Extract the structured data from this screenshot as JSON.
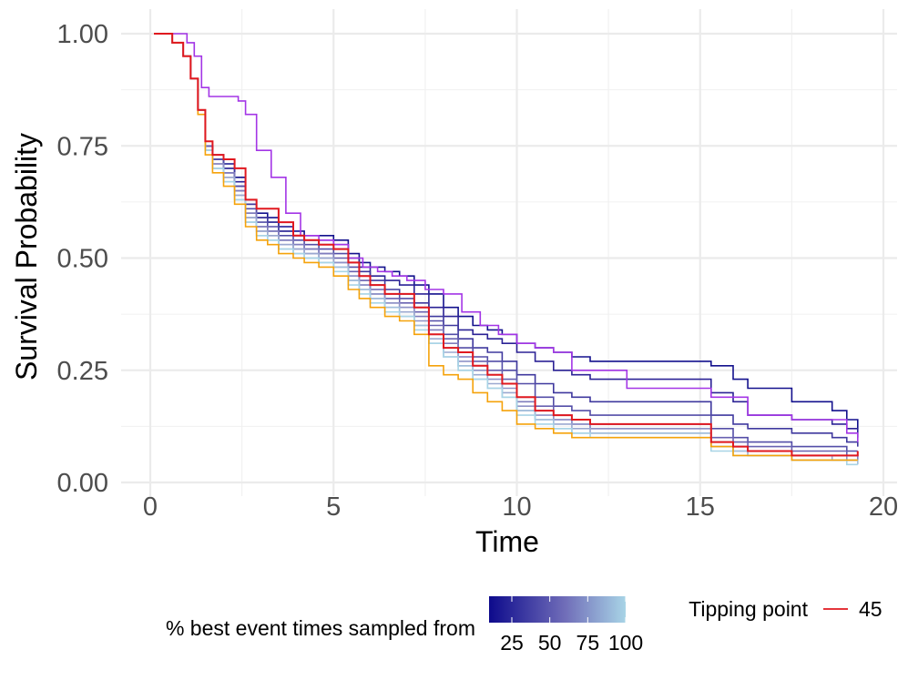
{
  "chart_data": {
    "type": "line",
    "step": true,
    "xlabel": "Time",
    "ylabel": "Survival Probability",
    "xlim": [
      0,
      20
    ],
    "ylim": [
      0,
      1
    ],
    "x_ticks": [
      0,
      5,
      10,
      15,
      20
    ],
    "x_tick_labels": [
      "0",
      "5",
      "10",
      "15",
      "20"
    ],
    "y_ticks": [
      0,
      0.25,
      0.5,
      0.75,
      1
    ],
    "y_tick_labels": [
      "0.00",
      "0.25",
      "0.50",
      "0.75",
      "1.00"
    ],
    "grid": true,
    "legend_position": "bottom",
    "colorbar": {
      "title": "% best event times sampled from",
      "tick_labels": [
        "25",
        "50",
        "75",
        "100"
      ],
      "tick_values": [
        25,
        50,
        75,
        100
      ],
      "range": [
        10,
        100
      ],
      "low_color": "#0d0a8c",
      "high_color": "#a8d4e6"
    },
    "tipping_legend": {
      "title": "Tipping point",
      "label": "45",
      "color": "#e0181f"
    },
    "series": [
      {
        "pct": 10,
        "color": "#13118d",
        "x": [
          0.1,
          0.6,
          0.9,
          1.1,
          1.3,
          1.5,
          1.7,
          2.0,
          2.3,
          2.6,
          2.9,
          3.2,
          3.5,
          3.9,
          4.2,
          4.6,
          5.0,
          5.4,
          5.7,
          6.0,
          6.4,
          6.8,
          7.2,
          7.6,
          8.0,
          8.4,
          8.8,
          9.2,
          9.6,
          10.0,
          10.5,
          11.0,
          11.5,
          12.0,
          13.0,
          15.3,
          15.9,
          16.3,
          17.5,
          18.6,
          19.0,
          19.3
        ],
        "y": [
          1,
          0.98,
          0.95,
          0.9,
          0.83,
          0.75,
          0.73,
          0.71,
          0.68,
          0.63,
          0.6,
          0.59,
          0.57,
          0.56,
          0.55,
          0.55,
          0.54,
          0.51,
          0.49,
          0.48,
          0.47,
          0.46,
          0.44,
          0.42,
          0.39,
          0.37,
          0.35,
          0.34,
          0.33,
          0.31,
          0.3,
          0.29,
          0.28,
          0.27,
          0.27,
          0.26,
          0.23,
          0.21,
          0.18,
          0.16,
          0.14,
          0.12
        ]
      },
      {
        "pct": 20,
        "color": "#2b2295",
        "x": [
          0.1,
          0.6,
          0.9,
          1.1,
          1.3,
          1.5,
          1.7,
          2.0,
          2.3,
          2.6,
          2.9,
          3.2,
          3.5,
          3.9,
          4.2,
          4.6,
          5.0,
          5.4,
          5.7,
          6.0,
          6.4,
          6.8,
          7.2,
          7.6,
          8.0,
          8.4,
          8.8,
          9.2,
          9.6,
          10.0,
          10.5,
          11.0,
          11.5,
          12.0,
          13.0,
          15.3,
          15.9,
          16.3,
          17.5,
          18.6,
          19.0,
          19.3
        ],
        "y": [
          1,
          0.98,
          0.95,
          0.9,
          0.83,
          0.75,
          0.72,
          0.7,
          0.67,
          0.62,
          0.59,
          0.58,
          0.56,
          0.55,
          0.54,
          0.54,
          0.53,
          0.5,
          0.48,
          0.46,
          0.45,
          0.44,
          0.42,
          0.39,
          0.37,
          0.34,
          0.33,
          0.32,
          0.31,
          0.29,
          0.27,
          0.25,
          0.24,
          0.23,
          0.23,
          0.2,
          0.18,
          0.15,
          0.14,
          0.13,
          0.12,
          0.1
        ]
      },
      {
        "pct": 30,
        "color": "#3f389e",
        "x": [
          0.1,
          0.6,
          0.9,
          1.1,
          1.3,
          1.5,
          1.7,
          2.0,
          2.3,
          2.6,
          2.9,
          3.2,
          3.5,
          3.9,
          4.2,
          4.6,
          5.0,
          5.4,
          5.7,
          6.0,
          6.4,
          6.8,
          7.2,
          7.6,
          8.0,
          8.4,
          8.8,
          9.2,
          9.6,
          10.0,
          10.5,
          11.0,
          11.5,
          12.0,
          13.0,
          15.3,
          15.9,
          16.3,
          17.5,
          18.6,
          19.0,
          19.3
        ],
        "y": [
          1,
          0.98,
          0.95,
          0.9,
          0.83,
          0.75,
          0.72,
          0.7,
          0.66,
          0.62,
          0.59,
          0.58,
          0.56,
          0.55,
          0.54,
          0.53,
          0.52,
          0.49,
          0.47,
          0.45,
          0.43,
          0.42,
          0.4,
          0.37,
          0.35,
          0.32,
          0.3,
          0.29,
          0.27,
          0.24,
          0.22,
          0.2,
          0.19,
          0.18,
          0.18,
          0.15,
          0.13,
          0.12,
          0.11,
          0.1,
          0.09,
          0.08
        ]
      },
      {
        "pct": 40,
        "color": "#534da7",
        "x": [
          0.1,
          0.6,
          0.9,
          1.1,
          1.3,
          1.5,
          1.7,
          2.0,
          2.3,
          2.6,
          2.9,
          3.2,
          3.5,
          3.9,
          4.2,
          4.6,
          5.0,
          5.4,
          5.7,
          6.0,
          6.4,
          6.8,
          7.2,
          7.6,
          8.0,
          8.4,
          8.8,
          9.2,
          9.6,
          10.0,
          10.5,
          11.0,
          11.5,
          12.0,
          13.0,
          15.3,
          15.9,
          16.3,
          17.5,
          18.6,
          19.0,
          19.3
        ],
        "y": [
          1,
          0.98,
          0.95,
          0.9,
          0.83,
          0.75,
          0.72,
          0.69,
          0.66,
          0.61,
          0.58,
          0.57,
          0.55,
          0.54,
          0.53,
          0.52,
          0.51,
          0.48,
          0.46,
          0.44,
          0.42,
          0.41,
          0.39,
          0.36,
          0.33,
          0.3,
          0.28,
          0.27,
          0.25,
          0.22,
          0.19,
          0.17,
          0.16,
          0.15,
          0.15,
          0.12,
          0.1,
          0.09,
          0.08,
          0.08,
          0.07,
          0.07
        ]
      },
      {
        "pct": 50,
        "color": "#6861b1",
        "x": [
          0.1,
          0.6,
          0.9,
          1.1,
          1.3,
          1.5,
          1.7,
          2.0,
          2.3,
          2.6,
          2.9,
          3.2,
          3.5,
          3.9,
          4.2,
          4.6,
          5.0,
          5.4,
          5.7,
          6.0,
          6.4,
          6.8,
          7.2,
          7.6,
          8.0,
          8.4,
          8.8,
          9.2,
          9.6,
          10.0,
          10.5,
          11.0,
          11.5,
          12.0,
          13.0,
          15.3,
          15.9,
          16.3,
          17.5,
          18.6,
          19.0,
          19.3
        ],
        "y": [
          1,
          0.98,
          0.95,
          0.9,
          0.83,
          0.75,
          0.71,
          0.69,
          0.65,
          0.6,
          0.57,
          0.56,
          0.54,
          0.53,
          0.52,
          0.51,
          0.5,
          0.47,
          0.45,
          0.43,
          0.41,
          0.4,
          0.38,
          0.35,
          0.32,
          0.29,
          0.27,
          0.25,
          0.23,
          0.19,
          0.17,
          0.15,
          0.14,
          0.13,
          0.13,
          0.1,
          0.09,
          0.08,
          0.07,
          0.07,
          0.06,
          0.06
        ]
      },
      {
        "pct": 60,
        "color": "#7f7cbd",
        "x": [
          0.1,
          0.6,
          0.9,
          1.1,
          1.3,
          1.5,
          1.7,
          2.0,
          2.3,
          2.6,
          2.9,
          3.2,
          3.5,
          3.9,
          4.2,
          4.6,
          5.0,
          5.4,
          5.7,
          6.0,
          6.4,
          6.8,
          7.2,
          7.6,
          8.0,
          8.4,
          8.8,
          9.2,
          9.6,
          10.0,
          10.5,
          11.0,
          11.5,
          12.0,
          13.0,
          15.3,
          15.9,
          16.3,
          17.5,
          18.6,
          19.0,
          19.3
        ],
        "y": [
          1,
          0.98,
          0.95,
          0.9,
          0.83,
          0.74,
          0.71,
          0.69,
          0.65,
          0.6,
          0.57,
          0.56,
          0.54,
          0.53,
          0.52,
          0.51,
          0.49,
          0.46,
          0.44,
          0.42,
          0.4,
          0.39,
          0.37,
          0.34,
          0.31,
          0.28,
          0.26,
          0.24,
          0.22,
          0.18,
          0.16,
          0.14,
          0.13,
          0.12,
          0.12,
          0.09,
          0.08,
          0.07,
          0.06,
          0.06,
          0.06,
          0.05
        ]
      },
      {
        "pct": 70,
        "color": "#8f92c7",
        "x": [
          0.1,
          0.6,
          0.9,
          1.1,
          1.3,
          1.5,
          1.7,
          2.0,
          2.3,
          2.6,
          2.9,
          3.2,
          3.5,
          3.9,
          4.2,
          4.6,
          5.0,
          5.4,
          5.7,
          6.0,
          6.4,
          6.8,
          7.2,
          7.6,
          8.0,
          8.4,
          8.8,
          9.2,
          9.6,
          10.0,
          10.5,
          11.0,
          11.5,
          12.0,
          13.0,
          15.3,
          15.9,
          16.3,
          17.5,
          18.6,
          19.0,
          19.3
        ],
        "y": [
          1,
          0.98,
          0.95,
          0.9,
          0.83,
          0.74,
          0.71,
          0.68,
          0.64,
          0.59,
          0.56,
          0.55,
          0.53,
          0.52,
          0.51,
          0.5,
          0.49,
          0.46,
          0.44,
          0.42,
          0.4,
          0.39,
          0.36,
          0.33,
          0.3,
          0.27,
          0.25,
          0.23,
          0.21,
          0.17,
          0.15,
          0.14,
          0.13,
          0.12,
          0.12,
          0.09,
          0.08,
          0.07,
          0.06,
          0.06,
          0.05,
          0.05
        ]
      },
      {
        "pct": 80,
        "color": "#9aa8d0",
        "x": [
          0.1,
          0.6,
          0.9,
          1.1,
          1.3,
          1.5,
          1.7,
          2.0,
          2.3,
          2.6,
          2.9,
          3.2,
          3.5,
          3.9,
          4.2,
          4.6,
          5.0,
          5.4,
          5.7,
          6.0,
          6.4,
          6.8,
          7.2,
          7.6,
          8.0,
          8.4,
          8.8,
          9.2,
          9.6,
          10.0,
          10.5,
          11.0,
          11.5,
          12.0,
          13.0,
          15.3,
          15.9,
          16.3,
          17.5,
          18.6,
          19.0,
          19.3
        ],
        "y": [
          1,
          0.98,
          0.95,
          0.9,
          0.83,
          0.74,
          0.7,
          0.68,
          0.64,
          0.59,
          0.56,
          0.55,
          0.53,
          0.52,
          0.51,
          0.5,
          0.48,
          0.45,
          0.43,
          0.41,
          0.39,
          0.38,
          0.35,
          0.32,
          0.29,
          0.26,
          0.24,
          0.22,
          0.2,
          0.16,
          0.14,
          0.13,
          0.12,
          0.11,
          0.11,
          0.08,
          0.07,
          0.06,
          0.06,
          0.05,
          0.05,
          0.05
        ]
      },
      {
        "pct": 90,
        "color": "#a1bedb",
        "x": [
          0.1,
          0.6,
          0.9,
          1.1,
          1.3,
          1.5,
          1.7,
          2.0,
          2.3,
          2.6,
          2.9,
          3.2,
          3.5,
          3.9,
          4.2,
          4.6,
          5.0,
          5.4,
          5.7,
          6.0,
          6.4,
          6.8,
          7.2,
          7.6,
          8.0,
          8.4,
          8.8,
          9.2,
          9.6,
          10.0,
          10.5,
          11.0,
          11.5,
          12.0,
          13.0,
          15.3,
          15.9,
          16.3,
          17.5,
          18.6,
          19.0,
          19.3
        ],
        "y": [
          1,
          0.98,
          0.95,
          0.9,
          0.83,
          0.74,
          0.7,
          0.67,
          0.63,
          0.58,
          0.55,
          0.54,
          0.52,
          0.51,
          0.5,
          0.49,
          0.48,
          0.45,
          0.43,
          0.41,
          0.39,
          0.37,
          0.35,
          0.31,
          0.28,
          0.26,
          0.23,
          0.21,
          0.19,
          0.16,
          0.14,
          0.12,
          0.11,
          0.11,
          0.11,
          0.08,
          0.07,
          0.06,
          0.05,
          0.05,
          0.05,
          0.04
        ]
      },
      {
        "pct": 100,
        "color": "#a8d4e6",
        "x": [
          0.1,
          0.6,
          0.9,
          1.1,
          1.3,
          1.5,
          1.7,
          2.0,
          2.3,
          2.6,
          2.9,
          3.2,
          3.5,
          3.9,
          4.2,
          4.6,
          5.0,
          5.4,
          5.7,
          6.0,
          6.4,
          6.8,
          7.2,
          7.6,
          8.0,
          8.4,
          8.8,
          9.2,
          9.6,
          10.0,
          10.5,
          11.0,
          11.5,
          12.0,
          13.0,
          15.3,
          15.9,
          16.3,
          17.5,
          18.6,
          19.0,
          19.3
        ],
        "y": [
          1,
          0.98,
          0.95,
          0.9,
          0.83,
          0.74,
          0.7,
          0.67,
          0.63,
          0.58,
          0.55,
          0.54,
          0.52,
          0.51,
          0.5,
          0.49,
          0.47,
          0.44,
          0.42,
          0.4,
          0.38,
          0.37,
          0.34,
          0.31,
          0.28,
          0.25,
          0.23,
          0.21,
          0.19,
          0.15,
          0.13,
          0.12,
          0.11,
          0.1,
          0.1,
          0.07,
          0.06,
          0.06,
          0.05,
          0.05,
          0.04,
          0.04
        ]
      },
      {
        "pct": 45,
        "color": "#e0181f",
        "tipping": true,
        "x": [
          0.1,
          0.6,
          0.9,
          1.1,
          1.3,
          1.5,
          1.7,
          2.0,
          2.3,
          2.6,
          2.9,
          3.2,
          3.5,
          3.9,
          4.2,
          4.6,
          5.0,
          5.4,
          5.7,
          6.0,
          6.4,
          6.8,
          7.2,
          7.6,
          8.0,
          8.4,
          8.8,
          9.2,
          9.6,
          10.0,
          10.5,
          11.0,
          11.5,
          12.0,
          13.0,
          15.3,
          15.9,
          16.3,
          17.5,
          18.6,
          19.0,
          19.3
        ],
        "y": [
          1,
          0.98,
          0.95,
          0.9,
          0.83,
          0.76,
          0.73,
          0.72,
          0.7,
          0.63,
          0.61,
          0.61,
          0.58,
          0.55,
          0.54,
          0.53,
          0.52,
          0.49,
          0.46,
          0.44,
          0.42,
          0.42,
          0.39,
          0.33,
          0.3,
          0.29,
          0.26,
          0.24,
          0.22,
          0.19,
          0.16,
          0.15,
          0.14,
          0.13,
          0.13,
          0.09,
          0.08,
          0.07,
          0.06,
          0.06,
          0.06,
          0.07
        ]
      },
      {
        "pct": 0,
        "color": "#f5a20a",
        "x": [
          0.1,
          0.6,
          0.9,
          1.1,
          1.3,
          1.5,
          1.7,
          2.0,
          2.3,
          2.6,
          2.9,
          3.2,
          3.5,
          3.9,
          4.2,
          4.6,
          5.0,
          5.4,
          5.7,
          6.0,
          6.4,
          6.8,
          7.2,
          7.6,
          8.0,
          8.4,
          8.8,
          9.2,
          9.6,
          10.0,
          10.5,
          11.0,
          11.5,
          12.0,
          13.0,
          15.3,
          15.9,
          16.3,
          17.5,
          18.6,
          19.0,
          19.3
        ],
        "y": [
          1,
          0.98,
          0.95,
          0.9,
          0.82,
          0.73,
          0.69,
          0.66,
          0.62,
          0.57,
          0.54,
          0.53,
          0.51,
          0.5,
          0.49,
          0.48,
          0.46,
          0.43,
          0.41,
          0.39,
          0.37,
          0.36,
          0.33,
          0.26,
          0.24,
          0.23,
          0.2,
          0.18,
          0.16,
          0.13,
          0.12,
          0.11,
          0.1,
          0.1,
          0.1,
          0.08,
          0.06,
          0.06,
          0.05,
          0.05,
          0.05,
          0.05
        ]
      },
      {
        "pct": -1,
        "color": "#a335e6",
        "x": [
          0.1,
          0.7,
          1.0,
          1.2,
          1.4,
          1.6,
          2.0,
          2.4,
          2.6,
          2.9,
          3.3,
          3.7,
          4.1,
          4.6,
          5.0,
          5.4,
          5.8,
          6.2,
          6.6,
          7.0,
          7.5,
          8.0,
          8.5,
          9.0,
          9.5,
          10.0,
          10.5,
          11.0,
          11.5,
          13.0,
          15.3,
          16.3,
          17.5,
          19.0,
          19.3
        ],
        "y": [
          1,
          1,
          0.98,
          0.95,
          0.88,
          0.86,
          0.86,
          0.85,
          0.82,
          0.74,
          0.68,
          0.6,
          0.55,
          0.54,
          0.53,
          0.5,
          0.48,
          0.47,
          0.46,
          0.45,
          0.43,
          0.42,
          0.38,
          0.35,
          0.33,
          0.31,
          0.3,
          0.29,
          0.25,
          0.21,
          0.19,
          0.15,
          0.14,
          0.11,
          0.09
        ]
      }
    ]
  }
}
